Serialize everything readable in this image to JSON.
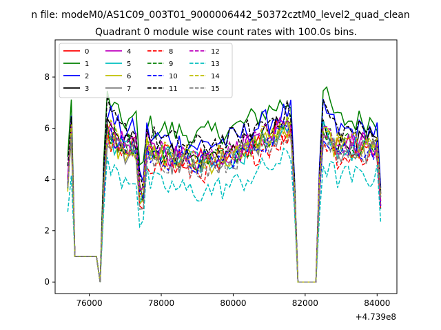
{
  "chart_data": {
    "type": "line",
    "suptitle": "n file: modeM0/AS1C09_003T01_9000006442_50372cztM0_level2_quad_clean",
    "title": "Quadrant 0 module wise count rates with 100.0s bins.",
    "xlabel": "",
    "ylabel": "",
    "x_offset_label": "+4.739e8",
    "xlim": [
      75050,
      84550
    ],
    "ylim": [
      -0.45,
      9.45
    ],
    "x_ticks": [
      76000,
      78000,
      80000,
      82000,
      84000
    ],
    "x_tick_labels": [
      "76000",
      "78000",
      "80000",
      "82000",
      "84000"
    ],
    "y_ticks": [
      0,
      2,
      4,
      6,
      8
    ],
    "y_tick_labels": [
      "0",
      "2",
      "4",
      "6",
      "8"
    ],
    "legend_position": "top-left",
    "segments": [
      {
        "start": 75400,
        "end": 76250
      },
      {
        "start": 76350,
        "end": 81750
      },
      {
        "start": 82400,
        "end": 84150
      }
    ],
    "series": [
      {
        "name": "0",
        "color": "#ff0000",
        "dash": "solid",
        "base": 5.3,
        "bump": 0.9
      },
      {
        "name": "1",
        "color": "#008000",
        "dash": "solid",
        "base": 6.3,
        "bump": 1.4
      },
      {
        "name": "2",
        "color": "#0000ff",
        "dash": "solid",
        "base": 5.9,
        "bump": 1.2
      },
      {
        "name": "3",
        "color": "#000000",
        "dash": "solid",
        "base": 5.4,
        "bump": 0.9
      },
      {
        "name": "4",
        "color": "#bf00bf",
        "dash": "solid",
        "base": 5.4,
        "bump": 0.9
      },
      {
        "name": "5",
        "color": "#00bfbf",
        "dash": "solid",
        "base": 5.2,
        "bump": 0.8
      },
      {
        "name": "6",
        "color": "#bfbf00",
        "dash": "solid",
        "base": 5.2,
        "bump": 0.8
      },
      {
        "name": "7",
        "color": "#808080",
        "dash": "solid",
        "base": 5.1,
        "bump": 0.8
      },
      {
        "name": "8",
        "color": "#ff0000",
        "dash": "dashed",
        "base": 4.9,
        "bump": 0.9
      },
      {
        "name": "9",
        "color": "#008000",
        "dash": "dashed",
        "base": 5.4,
        "bump": 0.9
      },
      {
        "name": "10",
        "color": "#0000ff",
        "dash": "dashed",
        "base": 5.2,
        "bump": 0.8
      },
      {
        "name": "11",
        "color": "#000000",
        "dash": "dashed",
        "base": 5.9,
        "bump": 1.3
      },
      {
        "name": "12",
        "color": "#bf00bf",
        "dash": "dashed",
        "base": 5.4,
        "bump": 0.9
      },
      {
        "name": "13",
        "color": "#00bfbf",
        "dash": "dashed",
        "base": 4.1,
        "bump": 0.6
      },
      {
        "name": "14",
        "color": "#bfbf00",
        "dash": "dashed",
        "base": 5.4,
        "bump": 0.9
      },
      {
        "name": "15",
        "color": "#808080",
        "dash": "dashed",
        "base": 5.1,
        "bump": 0.8
      }
    ]
  }
}
